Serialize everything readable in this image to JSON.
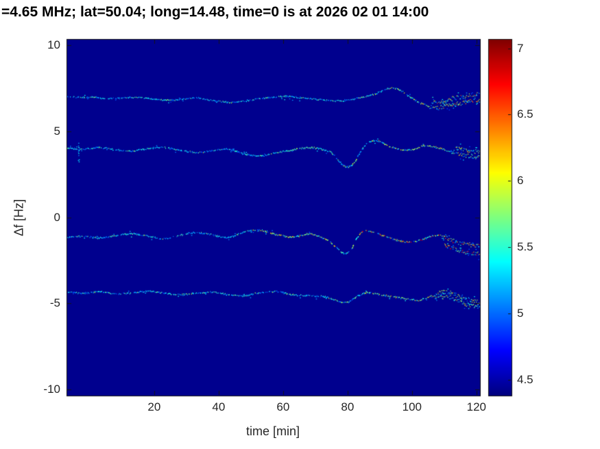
{
  "title": "=4.65 MHz;  lat=50.04; long=14.48, time=0 is at 2026 02 01 14:00",
  "colors": {
    "figure_background": "#ffffff",
    "axes_text": "#262626",
    "title_color": "#000000",
    "plot_background": "#00008f",
    "axis_line": "#151515"
  },
  "chart_data": {
    "type": "heatmap",
    "title": "=4.65 MHz;  lat=50.04; long=14.48, time=0 is at 2026 02 01 14:00",
    "xlabel": "time [min]",
    "ylabel": "Δf [Hz]",
    "xlim": [
      -7.2,
      121.1
    ],
    "ylim": [
      -10.36,
      10.36
    ],
    "x_ticks": [
      20,
      40,
      60,
      80,
      100,
      120
    ],
    "y_ticks": [
      -10,
      -5,
      0,
      5,
      10
    ],
    "grid": false,
    "legend": "none",
    "colorbar": {
      "min": 4.38,
      "max": 7.07,
      "ticks": [
        4.5,
        5,
        5.5,
        6,
        6.5,
        7
      ],
      "colormap": "jet",
      "position": "right"
    },
    "background_value": 4.42,
    "traces": [
      {
        "name": "doppler-trace-plus7hz",
        "t": [
          -7,
          -3,
          1,
          5,
          9,
          13,
          17,
          21,
          25,
          29,
          33,
          37,
          41,
          45,
          49,
          53,
          57,
          61,
          65,
          69,
          73,
          77,
          81,
          85,
          89,
          93,
          96,
          99,
          102,
          105,
          108,
          111,
          114,
          117,
          121
        ],
        "f": [
          7.0,
          6.95,
          6.98,
          6.9,
          6.92,
          6.97,
          6.93,
          6.85,
          6.8,
          6.88,
          6.93,
          6.82,
          6.72,
          6.68,
          6.78,
          6.9,
          6.97,
          7.02,
          6.96,
          6.88,
          6.8,
          6.76,
          6.84,
          7.0,
          7.2,
          7.5,
          7.4,
          7.05,
          6.7,
          6.45,
          6.35,
          6.5,
          6.6,
          6.7,
          6.85
        ],
        "warm": [
          [
            83,
            103,
            0.45
          ],
          [
            103,
            121,
            0.75
          ]
        ],
        "fuzz_start": 105,
        "second": {
          "t1": 106,
          "t2": 121,
          "df": 0.35
        }
      },
      {
        "name": "doppler-trace-plus4hz",
        "t": [
          -7,
          -2,
          3,
          8,
          13,
          18,
          23,
          28,
          33,
          38,
          43,
          48,
          53,
          58,
          63,
          68,
          72,
          75,
          78,
          80,
          82,
          84,
          86,
          89,
          92,
          96,
          100,
          104,
          108,
          112,
          116,
          121
        ],
        "f": [
          4.0,
          3.95,
          4.05,
          3.92,
          3.85,
          4.0,
          4.06,
          3.9,
          3.76,
          3.86,
          3.96,
          3.68,
          3.55,
          3.75,
          3.92,
          4.05,
          3.95,
          3.75,
          3.15,
          2.92,
          3.15,
          3.8,
          4.3,
          4.45,
          4.2,
          3.95,
          3.92,
          4.15,
          4.05,
          3.8,
          3.62,
          3.5
        ],
        "warm": [
          [
            58,
            72,
            0.35
          ],
          [
            82,
            121,
            0.6
          ]
        ],
        "fuzz_start": 112,
        "second": {
          "t1": 113,
          "t2": 121,
          "df": 0.3
        }
      },
      {
        "name": "doppler-trace-minus1hz",
        "t": [
          -7,
          -2,
          3,
          8,
          13,
          18,
          23,
          28,
          33,
          38,
          43,
          48,
          53,
          58,
          63,
          68,
          71,
          74,
          77,
          79,
          81,
          83,
          85,
          88,
          91,
          94,
          97,
          100,
          103,
          106,
          109,
          112,
          115,
          118,
          121
        ],
        "f": [
          -1.15,
          -1.1,
          -1.2,
          -1.08,
          -0.95,
          -1.1,
          -1.25,
          -1.05,
          -0.88,
          -1.02,
          -1.18,
          -0.85,
          -0.75,
          -1.0,
          -1.15,
          -0.98,
          -1.1,
          -1.35,
          -1.8,
          -2.1,
          -1.9,
          -1.2,
          -0.78,
          -0.88,
          -1.05,
          -1.25,
          -1.4,
          -1.45,
          -1.3,
          -1.1,
          -1.05,
          -1.3,
          -1.5,
          -1.6,
          -1.7
        ],
        "warm": [
          [
            50,
            76,
            0.65
          ],
          [
            82,
            121,
            0.9
          ]
        ],
        "fuzz_start": 108,
        "second": {
          "t1": 110,
          "t2": 121,
          "df": -0.45
        }
      },
      {
        "name": "doppler-trace-minus4p5hz",
        "t": [
          -7,
          -2,
          3,
          8,
          13,
          18,
          23,
          28,
          33,
          38,
          43,
          48,
          53,
          58,
          63,
          68,
          73,
          77,
          80,
          83,
          86,
          90,
          94,
          98,
          102,
          105,
          108,
          111,
          114,
          117,
          121
        ],
        "f": [
          -4.35,
          -4.42,
          -4.32,
          -4.45,
          -4.4,
          -4.3,
          -4.4,
          -4.5,
          -4.42,
          -4.35,
          -4.5,
          -4.56,
          -4.38,
          -4.32,
          -4.5,
          -4.56,
          -4.62,
          -4.85,
          -4.95,
          -4.6,
          -4.38,
          -4.5,
          -4.62,
          -4.72,
          -4.82,
          -4.65,
          -4.4,
          -4.32,
          -4.5,
          -4.75,
          -4.95
        ],
        "warm": [
          [
            85,
            121,
            0.55
          ]
        ],
        "fuzz_start": 106,
        "second": {
          "t1": 107,
          "t2": 121,
          "df": -0.3
        }
      }
    ],
    "artifacts": [
      {
        "t": -3.5,
        "f1": 3.25,
        "f2": 4.35
      }
    ]
  }
}
